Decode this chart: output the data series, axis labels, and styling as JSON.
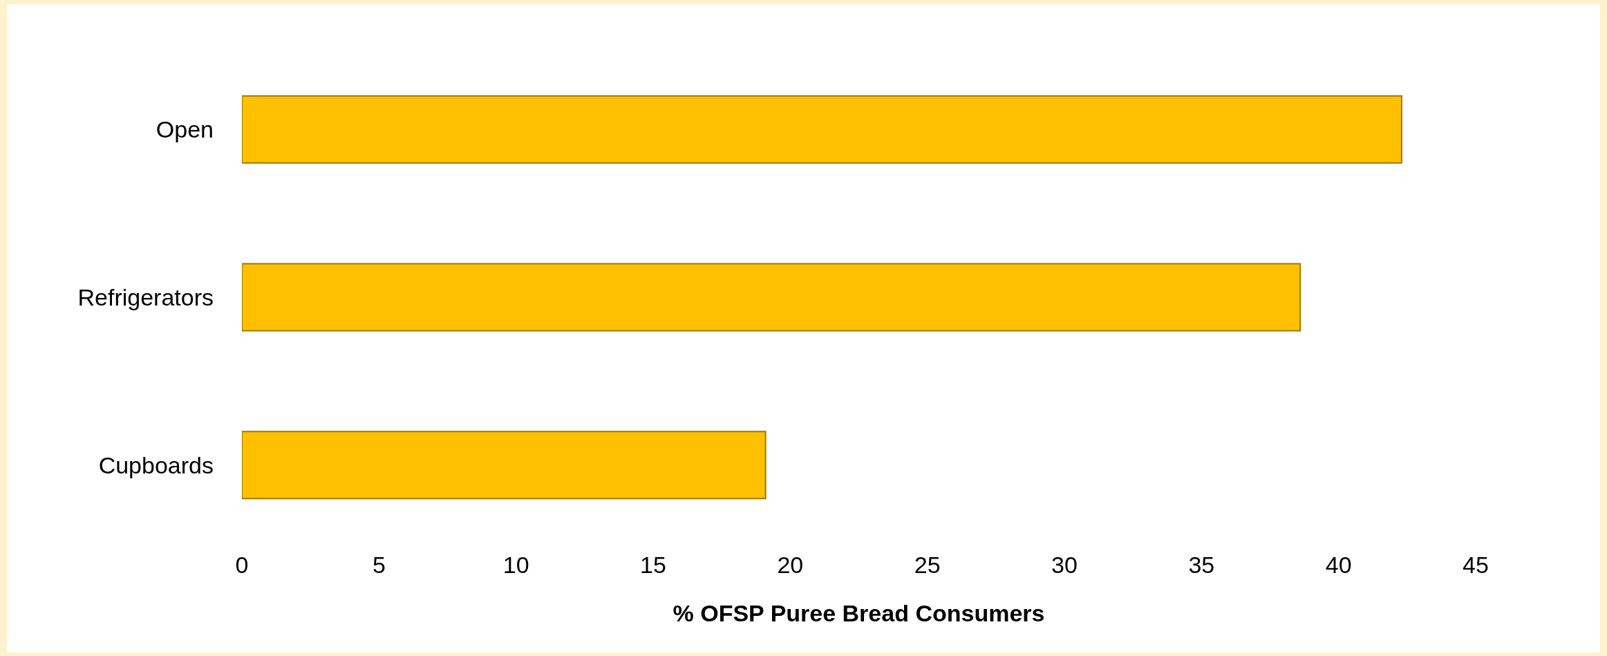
{
  "chart_data": {
    "type": "bar",
    "orientation": "horizontal",
    "xlabel": "% OFSP Puree Bread Consumers",
    "categories": [
      "Open",
      "Refrigerators",
      "Cupboards"
    ],
    "values": [
      42.3,
      38.6,
      19.1
    ],
    "color": "#ffc000",
    "xlim": [
      0,
      45
    ],
    "xticks": [
      0,
      5,
      10,
      15,
      20,
      25,
      30,
      35,
      40,
      45
    ],
    "grid": false
  }
}
